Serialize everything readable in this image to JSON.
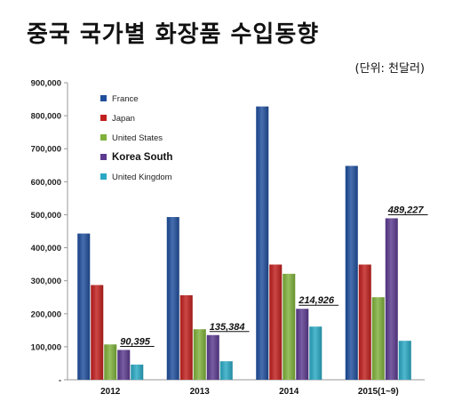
{
  "header": {
    "title": "중국 국가별 화장품 수입동향",
    "unit": "(단위: 천달러)"
  },
  "chart_data": {
    "type": "bar",
    "title": "중국 국가별 화장품 수입동향",
    "unit_label": "(단위: 천달러)",
    "categories": [
      "2012",
      "2013",
      "2014",
      "2015(1~9)"
    ],
    "ylim": [
      0,
      900000
    ],
    "yticks": [
      0,
      100000,
      200000,
      300000,
      400000,
      500000,
      600000,
      700000,
      800000,
      900000
    ],
    "ytick_labels": [
      "-",
      "100,000",
      "200,000",
      "300,000",
      "400,000",
      "500,000",
      "600,000",
      "700,000",
      "800,000",
      "900,000"
    ],
    "grid": false,
    "legend_position": "top-left",
    "series": [
      {
        "name": "France",
        "color": "#1f4e9c",
        "values": [
          443000,
          493000,
          828000,
          648000
        ]
      },
      {
        "name": "Japan",
        "color": "#c0201e",
        "values": [
          287000,
          256000,
          349000,
          349000
        ]
      },
      {
        "name": "United States",
        "color": "#7fb13b",
        "values": [
          107000,
          153000,
          321000,
          250000
        ]
      },
      {
        "name": "Korea South",
        "color": "#5b3a8f",
        "values": [
          90395,
          135384,
          214926,
          489227
        ],
        "highlight": true
      },
      {
        "name": "United Kingdom",
        "color": "#2aa9c4",
        "values": [
          46000,
          56000,
          161000,
          118000
        ]
      }
    ],
    "annotations": [
      {
        "series": "Korea South",
        "category": "2012",
        "text": "90,395"
      },
      {
        "series": "Korea South",
        "category": "2013",
        "text": "135,384"
      },
      {
        "series": "Korea South",
        "category": "2014",
        "text": "214,926"
      },
      {
        "series": "Korea South",
        "category": "2015(1~9)",
        "text": "489,227"
      }
    ]
  }
}
